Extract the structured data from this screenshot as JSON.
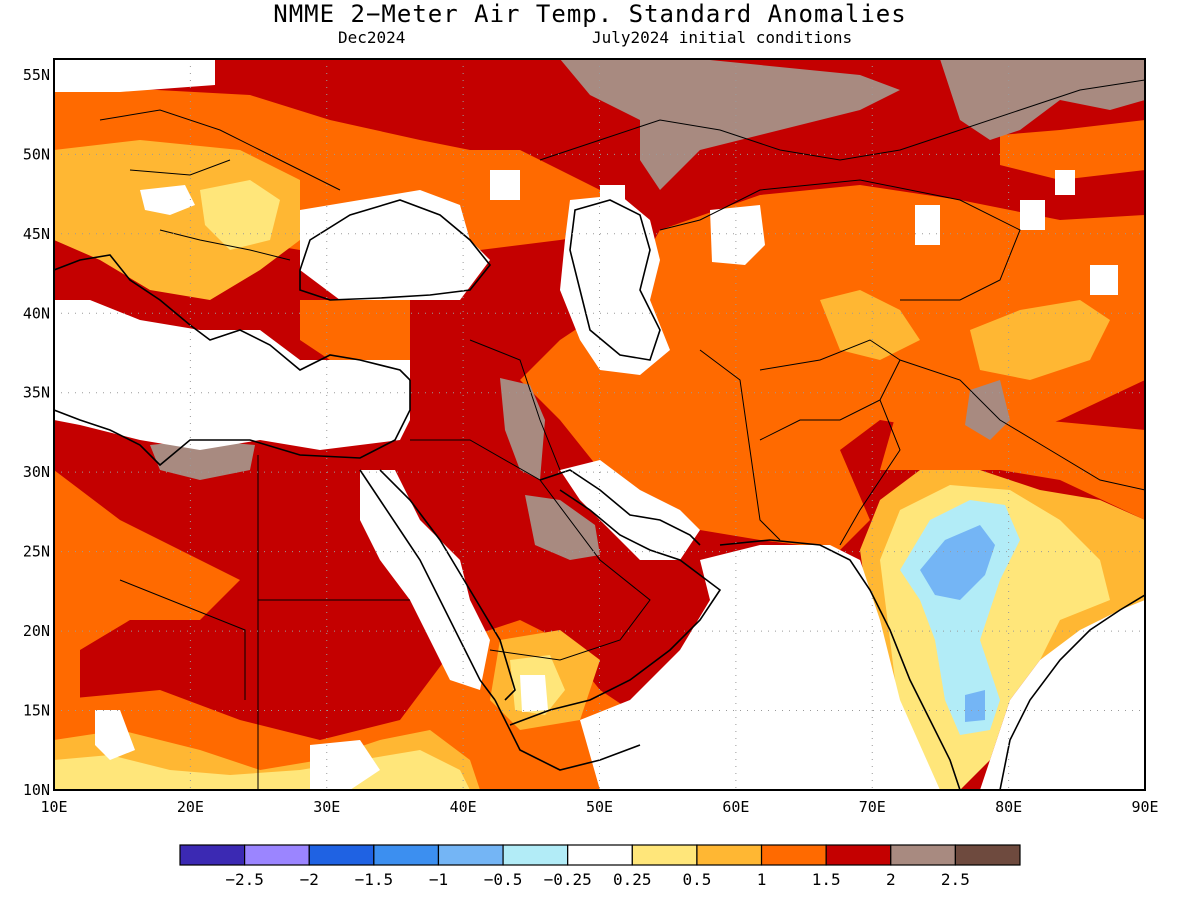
{
  "title": "NMME 2−Meter Air Temp. Standard Anomalies",
  "target_month": "Dec2024",
  "initial_conditions": "July2024 initial conditions",
  "lat_labels": [
    "55N",
    "50N",
    "45N",
    "40N",
    "35N",
    "30N",
    "25N",
    "20N",
    "15N",
    "10N"
  ],
  "lon_labels": [
    "10E",
    "20E",
    "30E",
    "40E",
    "50E",
    "60E",
    "70E",
    "80E",
    "90E"
  ],
  "colorbar": {
    "colors": [
      "#3b29b3",
      "#9b85ff",
      "#1f62e3",
      "#3c8ff0",
      "#74b5f5",
      "#b2ecf7",
      "#ffffff",
      "#ffe67a",
      "#ffb733",
      "#ff6a00",
      "#c40000",
      "#a88a80",
      "#6e4a3e"
    ],
    "ticks": [
      "−2.5",
      "−2",
      "−1.5",
      "−1",
      "−0.5",
      "−0.25",
      "0.25",
      "0.5",
      "1",
      "1.5",
      "2",
      "2.5"
    ]
  },
  "map_data": {
    "extent": {
      "lon": [
        10,
        90
      ],
      "lat": [
        10,
        56
      ]
    },
    "colors": {
      "white": "#ffffff",
      "yellow": "#ffe67a",
      "lightorange": "#ffb733",
      "orange": "#ff6a00",
      "red": "#c40000",
      "brown": "#a88a80",
      "lightblue": "#b2ecf7",
      "blue": "#74b5f5",
      "midblue": "#3c8ff0"
    }
  }
}
